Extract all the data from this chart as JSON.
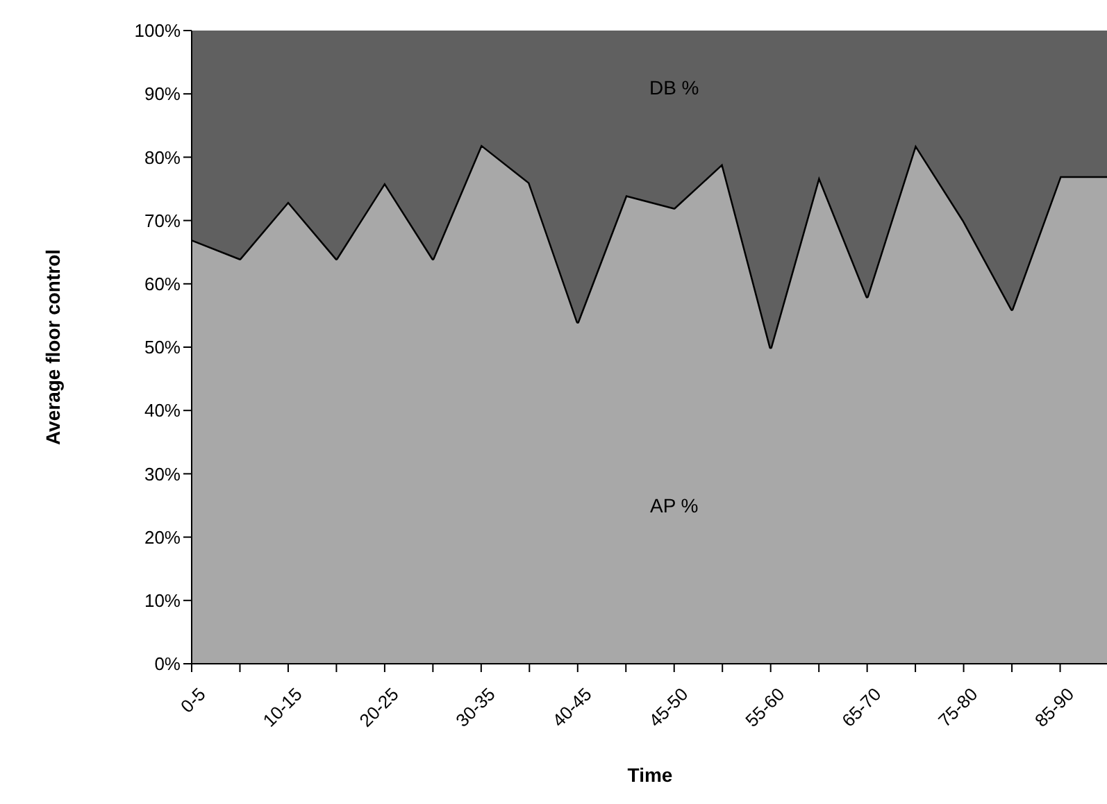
{
  "chart_data": {
    "type": "area",
    "stacked": true,
    "xlabel": "Time",
    "ylabel": "Average floor control",
    "categories": [
      "0-5",
      null,
      "10-15",
      null,
      "20-25",
      null,
      "30-35",
      null,
      "40-45",
      null,
      "45-50",
      null,
      "55-60",
      null,
      "65-70",
      null,
      "75-80",
      null,
      "85-90",
      null
    ],
    "series": [
      {
        "name": "AP %",
        "color": "#a8a8a8",
        "values": [
          67,
          64,
          73,
          64,
          76,
          64,
          82,
          76,
          54,
          74,
          72,
          79,
          50,
          77,
          58,
          82,
          70,
          56,
          77,
          77
        ]
      },
      {
        "name": "DB %",
        "color": "#606060",
        "values": [
          33,
          36,
          27,
          36,
          24,
          36,
          18,
          24,
          46,
          26,
          28,
          21,
          50,
          23,
          42,
          18,
          30,
          44,
          23,
          23
        ]
      }
    ],
    "ylim": [
      0,
      100
    ],
    "yticks": [
      {
        "value": 0,
        "label": "0%"
      },
      {
        "value": 10,
        "label": "10%"
      },
      {
        "value": 20,
        "label": "20%"
      },
      {
        "value": 30,
        "label": "30%"
      },
      {
        "value": 40,
        "label": "40%"
      },
      {
        "value": 50,
        "label": "50%"
      },
      {
        "value": 60,
        "label": "60%"
      },
      {
        "value": 70,
        "label": "70%"
      },
      {
        "value": 80,
        "label": "80%"
      },
      {
        "value": 90,
        "label": "90%"
      },
      {
        "value": 100,
        "label": "100%"
      }
    ],
    "grid": false,
    "legend": false
  }
}
